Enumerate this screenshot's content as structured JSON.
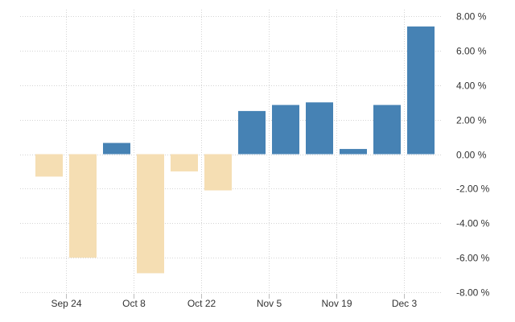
{
  "chart_data": {
    "type": "bar",
    "title": "",
    "xlabel": "",
    "ylabel": "",
    "grid": true,
    "ylim": [
      -8,
      8
    ],
    "y_ticks": [
      8,
      6,
      4,
      2,
      0,
      -2,
      -4,
      -6,
      -8
    ],
    "y_tick_labels": [
      "8.00 %",
      "6.00 %",
      "4.00 %",
      "2.00 %",
      "0.00 %",
      "-2.00 %",
      "-4.00 %",
      "-6.00 %",
      "-8.00 %"
    ],
    "x_tick_labels": [
      "Sep 24",
      "Oct 8",
      "Oct 22",
      "Nov 5",
      "Nov 19",
      "Dec 3"
    ],
    "x_tick_positions": [
      1,
      3,
      5,
      7,
      9,
      11
    ],
    "values": [
      -1.3,
      -6.0,
      0.65,
      -6.9,
      -1.0,
      -2.1,
      2.5,
      2.85,
      3.0,
      0.3,
      2.85,
      7.4
    ],
    "colors": {
      "positive": "#4682b4",
      "negative": "#f5deb3"
    }
  }
}
